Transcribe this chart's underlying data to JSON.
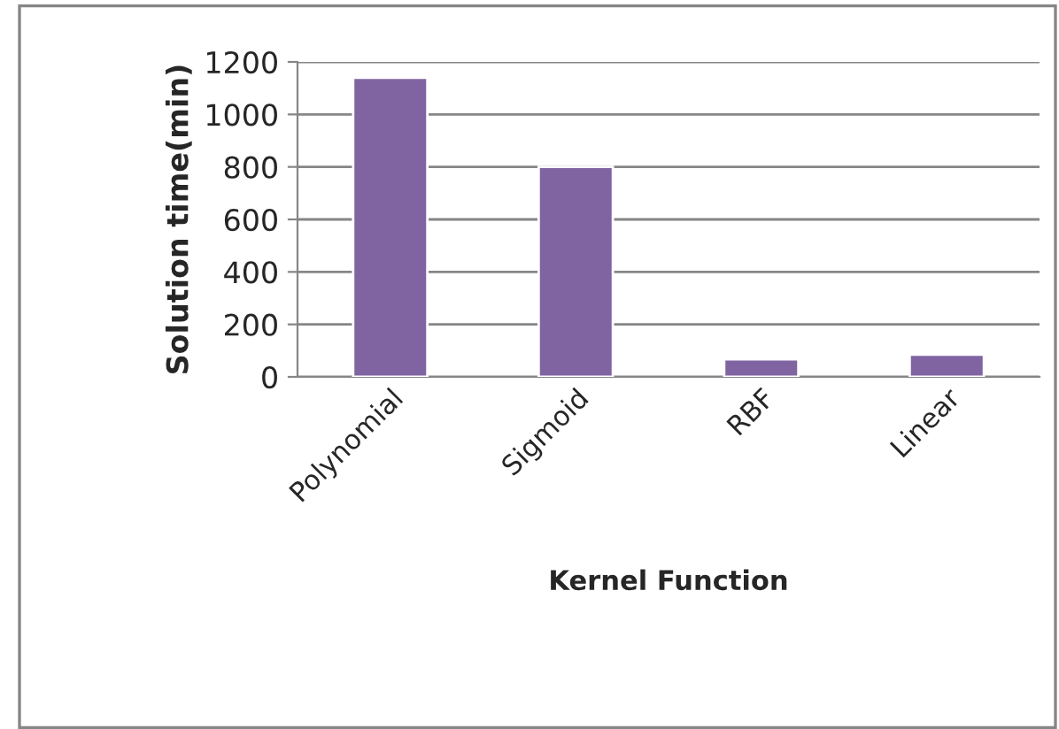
{
  "chart_data": {
    "type": "bar",
    "xlabel": "Kernel Function",
    "ylabel": "Solution time(min)",
    "categories": [
      "Polynomial",
      "Sigmoid",
      "RBF",
      "Linear"
    ],
    "series": [
      {
        "color": "#8064a2",
        "values": [
          1140,
          800,
          67,
          85
        ]
      }
    ],
    "ylim": [
      0,
      1200
    ],
    "yticks": [
      0,
      200,
      400,
      600,
      800,
      1000,
      1200
    ],
    "grid": "y",
    "legend": false
  }
}
